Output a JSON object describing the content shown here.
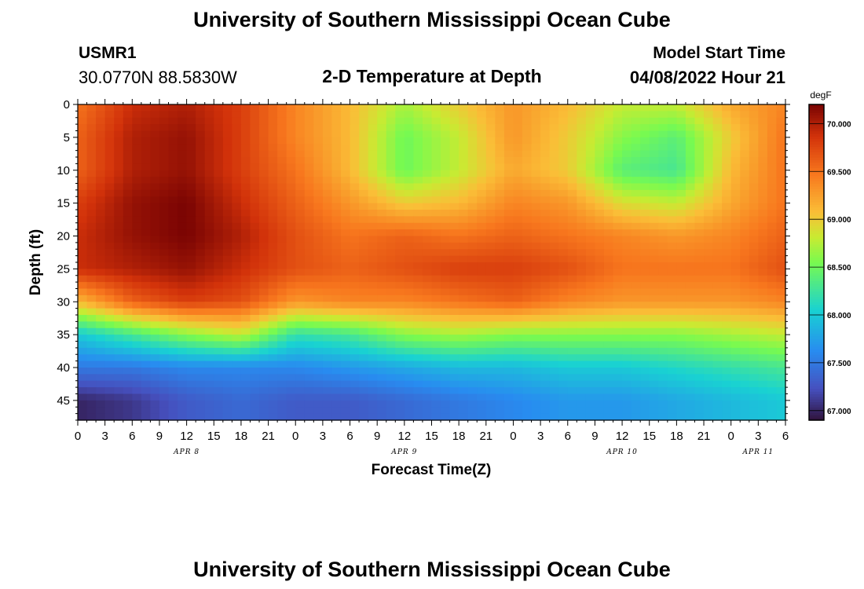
{
  "header": {
    "title": "University of Southern Mississippi Ocean Cube",
    "station_id": "USMR1",
    "station_coords": "30.0770N  88.5830W",
    "plot_title": "2-D Temperature at Depth",
    "model_label": "Model Start Time",
    "model_time": "04/08/2022 Hour 21"
  },
  "footer": {
    "title": "University of Southern Mississippi Ocean Cube"
  },
  "chart_data": {
    "type": "heatmap",
    "title": "2-D Temperature at Depth",
    "xlabel": "Forecast Time(Z)",
    "ylabel": "Depth (ft)",
    "x_unit": "hours since APR 8 00Z",
    "xlim": [
      0,
      78
    ],
    "ylim": [
      0,
      48
    ],
    "x_ticks": [
      0,
      3,
      6,
      9,
      12,
      15,
      18,
      21,
      24,
      27,
      30,
      33,
      36,
      39,
      42,
      45,
      48,
      51,
      54,
      57,
      60,
      63,
      66,
      69,
      72,
      75,
      78
    ],
    "x_tick_labels": [
      "0",
      "3",
      "6",
      "9",
      "12",
      "15",
      "18",
      "21",
      "0",
      "3",
      "6",
      "9",
      "12",
      "15",
      "18",
      "21",
      "0",
      "3",
      "6",
      "9",
      "12",
      "15",
      "18",
      "21",
      "0",
      "3",
      "6"
    ],
    "y_ticks": [
      0,
      5,
      10,
      15,
      20,
      25,
      30,
      35,
      40,
      45
    ],
    "y_tick_labels": [
      "0",
      "5",
      "10",
      "15",
      "20",
      "25",
      "30",
      "35",
      "40",
      "45"
    ],
    "dates": [
      {
        "label": "APR 8",
        "x": 12
      },
      {
        "label": "APR 9",
        "x": 36
      },
      {
        "label": "APR 10",
        "x": 60
      },
      {
        "label": "APR 11",
        "x": 75
      }
    ],
    "colorbar": {
      "unit": "degF",
      "min": 66.9,
      "max": 70.2,
      "ticks": [
        67.0,
        67.5,
        68.0,
        68.5,
        69.0,
        69.5,
        70.0
      ],
      "tick_labels": [
        "67.000",
        "67.500",
        "68.000",
        "68.500",
        "69.000",
        "69.500",
        "70.000"
      ]
    },
    "depths": [
      0,
      5,
      10,
      15,
      20,
      25,
      30,
      35,
      40,
      45
    ],
    "times": [
      0,
      6,
      12,
      18,
      24,
      30,
      36,
      42,
      48,
      54,
      60,
      66,
      72,
      78
    ],
    "values": [
      [
        69.5,
        69.9,
        70.0,
        69.8,
        69.4,
        69.1,
        68.7,
        69.0,
        69.3,
        69.1,
        68.8,
        68.8,
        69.2,
        69.4
      ],
      [
        69.6,
        70.0,
        70.1,
        69.8,
        69.4,
        69.1,
        68.5,
        68.8,
        69.3,
        69.0,
        68.6,
        68.4,
        69.0,
        69.5
      ],
      [
        69.6,
        70.0,
        70.1,
        69.8,
        69.5,
        69.1,
        68.5,
        68.8,
        69.2,
        69.0,
        68.4,
        68.3,
        69.1,
        69.5
      ],
      [
        69.8,
        70.1,
        70.2,
        69.9,
        69.6,
        69.3,
        69.0,
        69.1,
        69.4,
        69.3,
        68.9,
        68.8,
        69.2,
        69.5
      ],
      [
        69.9,
        70.1,
        70.2,
        70.0,
        69.7,
        69.5,
        69.6,
        69.5,
        69.6,
        69.5,
        69.4,
        69.3,
        69.4,
        69.6
      ],
      [
        69.9,
        70.0,
        70.1,
        69.9,
        69.7,
        69.6,
        69.7,
        69.8,
        69.8,
        69.7,
        69.5,
        69.5,
        69.5,
        69.7
      ],
      [
        69.1,
        69.6,
        69.8,
        69.7,
        69.3,
        69.4,
        69.4,
        69.5,
        69.6,
        69.4,
        69.3,
        69.3,
        69.3,
        69.4
      ],
      [
        68.0,
        68.3,
        68.6,
        68.8,
        68.2,
        68.3,
        68.6,
        68.7,
        68.6,
        68.6,
        68.6,
        68.6,
        68.7,
        68.8
      ],
      [
        67.5,
        67.5,
        67.6,
        67.6,
        67.6,
        67.7,
        67.8,
        67.9,
        67.9,
        68.0,
        68.0,
        68.1,
        68.2,
        68.3
      ],
      [
        67.0,
        67.1,
        67.3,
        67.4,
        67.3,
        67.3,
        67.4,
        67.5,
        67.6,
        67.7,
        67.7,
        67.8,
        67.9,
        68.0
      ]
    ]
  }
}
